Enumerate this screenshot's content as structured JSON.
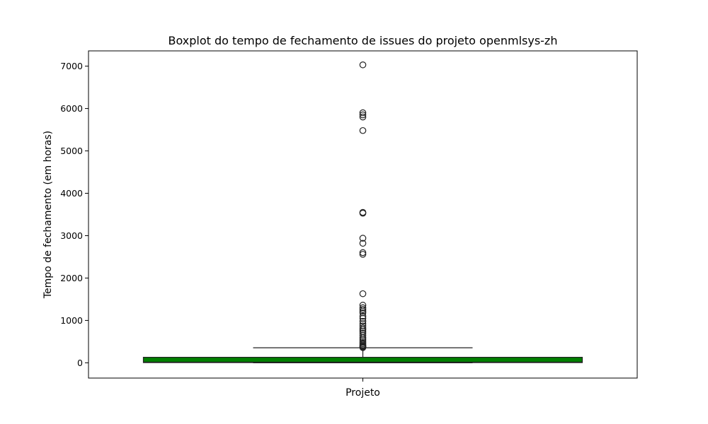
{
  "chart_data": {
    "type": "box",
    "title": "Boxplot do tempo de fechamento de issues do projeto openmlsys-zh",
    "xlabel": "Projeto",
    "ylabel": "Tempo de fechamento (em horas)",
    "ylim": [
      -360,
      7360
    ],
    "yticks": [
      0,
      1000,
      2000,
      3000,
      4000,
      5000,
      6000,
      7000
    ],
    "grid": false,
    "box": {
      "color": "#008000",
      "min": 0,
      "q1": 5,
      "median": 15,
      "q3": 130,
      "max": 355
    },
    "outliers": [
      7030,
      5900,
      5850,
      5800,
      5480,
      3550,
      3530,
      2940,
      2820,
      2600,
      2560,
      1630,
      1360,
      1300,
      1260,
      1220,
      1180,
      1100,
      1050,
      980,
      920,
      870,
      820,
      780,
      740,
      700,
      650,
      600,
      560,
      520,
      480,
      450,
      420,
      400,
      380,
      370,
      360
    ]
  }
}
